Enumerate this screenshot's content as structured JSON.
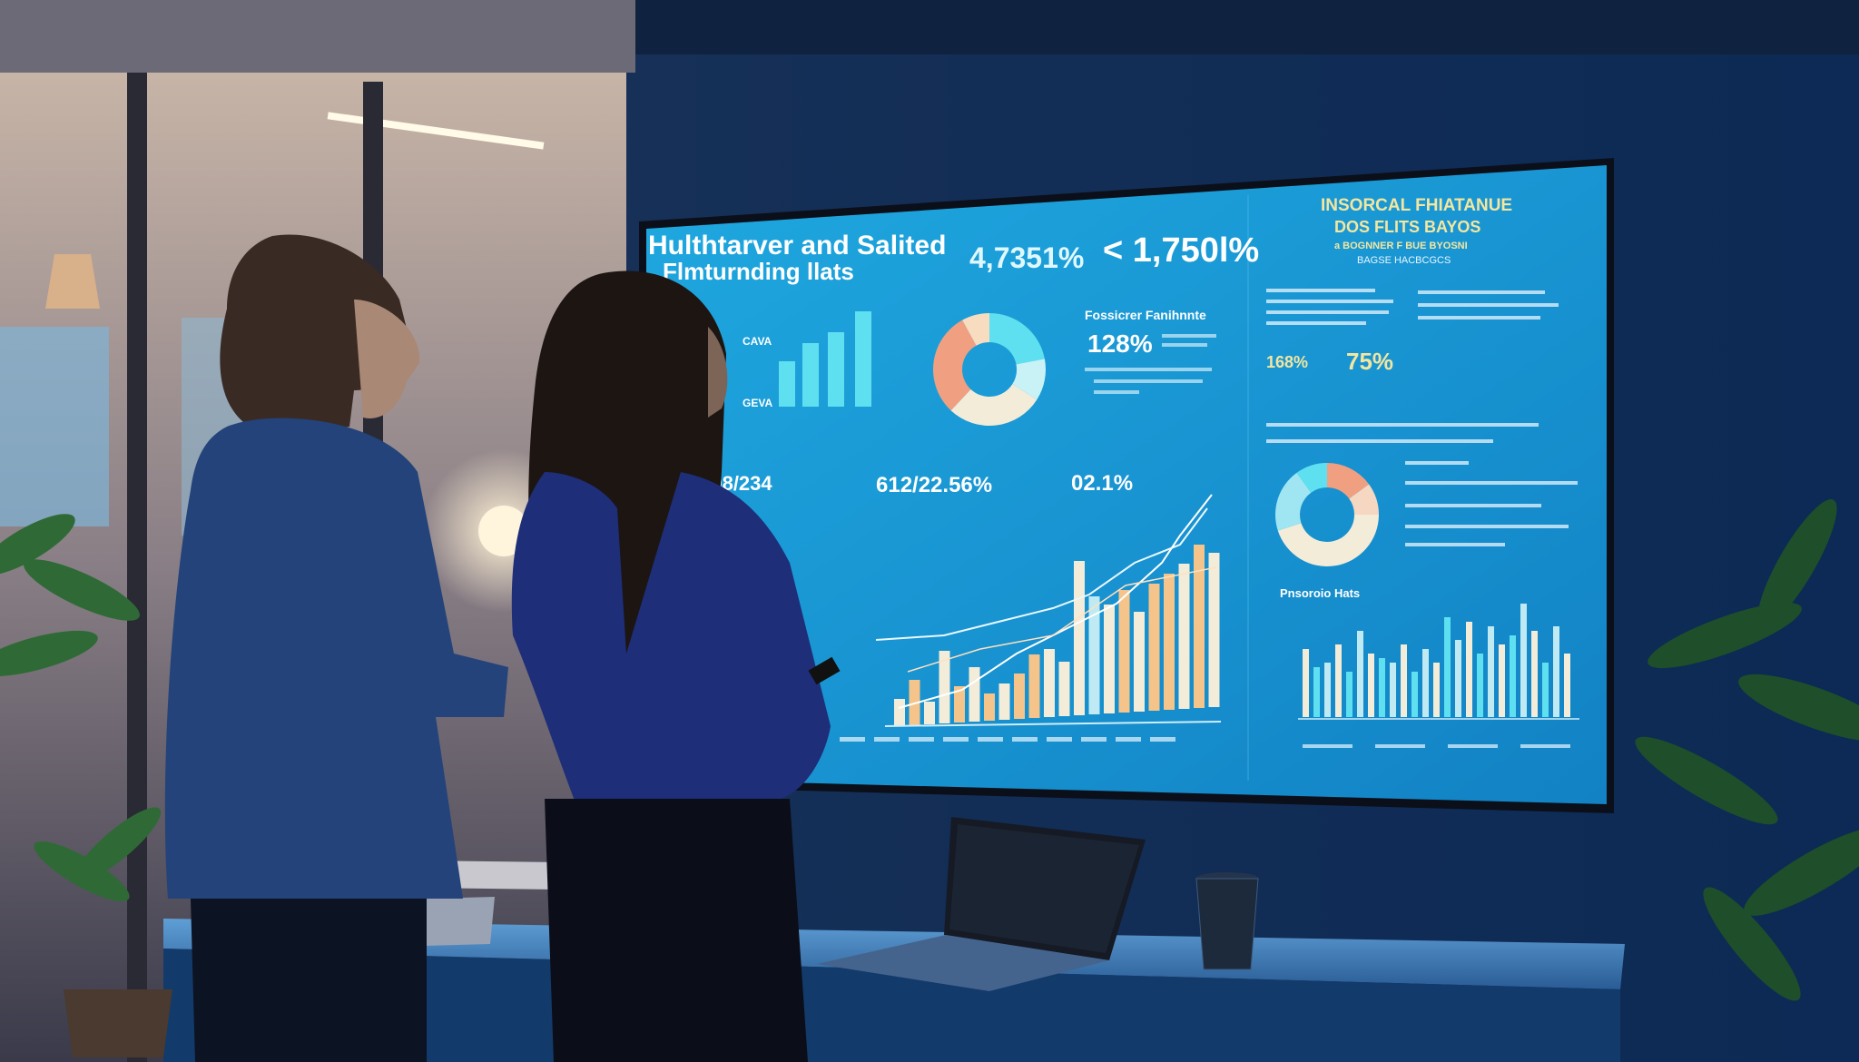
{
  "screen": {
    "title_line1": "Hulthtarver and Salited",
    "title_line2": "Flmturnding llats",
    "kpi_top_1": "4,7351%",
    "kpi_top_2": "< 1,750l%",
    "kpi_mid": "128%",
    "kpi_mid_label": "Fossicrer Fanihnnte",
    "kpi_bottom_1": "1/98/234",
    "kpi_bottom_2": "612/22.56%",
    "kpi_bottom_3": "02.1%",
    "small_bar_labels": [
      "CAVA",
      "GEVA"
    ],
    "right_title_1": "INSORCAL FHIATANUE",
    "right_title_2": "DOS FLITS BAYOS",
    "right_sub_1": "a BOGNNER F BUE BYOSNI",
    "right_sub_2": "BAGSE HACBCGCS",
    "right_kpi_1": "168%",
    "right_kpi_2": "75%",
    "right_chart_label": "Pnsoroio Hats",
    "colors": {
      "screen_bg": "#1a9fd6",
      "cyan": "#5fe0f0",
      "cream": "#f3ecd8",
      "peach": "#f5c48a",
      "salmon": "#f0a080",
      "yellow_text": "#f3e6a0"
    }
  }
}
